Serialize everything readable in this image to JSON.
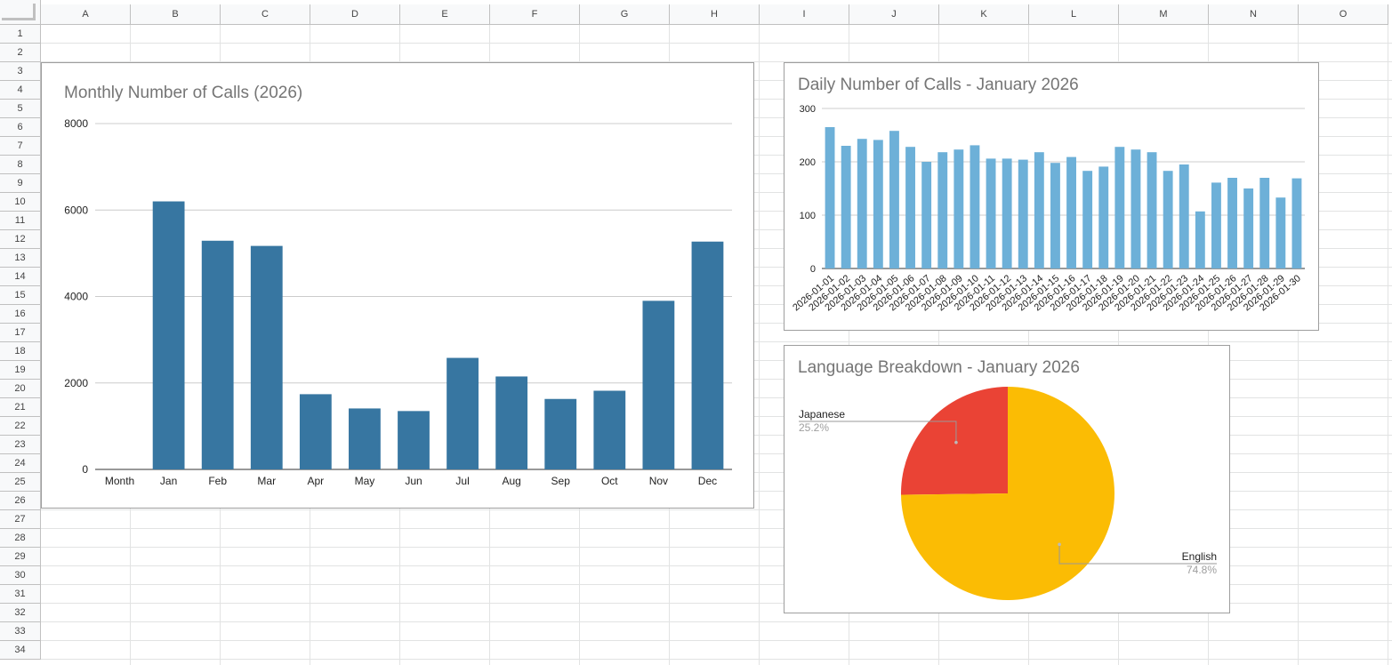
{
  "sheet": {
    "columns": [
      "A",
      "B",
      "C",
      "D",
      "E",
      "F",
      "G",
      "H",
      "I",
      "J",
      "K",
      "L",
      "M",
      "N",
      "O"
    ],
    "rows": [
      "1",
      "2",
      "3",
      "4",
      "5",
      "6",
      "7",
      "8",
      "9",
      "10",
      "11",
      "12",
      "13",
      "14",
      "15",
      "16",
      "17",
      "18",
      "19",
      "20",
      "21",
      "22",
      "23",
      "24",
      "25",
      "26",
      "27",
      "28",
      "29",
      "30",
      "31",
      "32",
      "33",
      "34"
    ]
  },
  "colors": {
    "monthly_bar": "#3776a1",
    "daily_bar": "#6db0d8",
    "english": "#fbbc04",
    "japanese": "#ea4335"
  },
  "chart_data": [
    {
      "type": "bar",
      "title": "Monthly Number of Calls (2026)",
      "categories": [
        "Month",
        "Jan",
        "Feb",
        "Mar",
        "Apr",
        "May",
        "Jun",
        "Jul",
        "Aug",
        "Sep",
        "Oct",
        "Nov",
        "Dec"
      ],
      "values": [
        0,
        6200,
        5290,
        5170,
        1740,
        1410,
        1350,
        2580,
        2150,
        1630,
        1820,
        3900,
        5270
      ],
      "yticks": [
        "0",
        "2000",
        "4000",
        "6000",
        "8000"
      ],
      "ylim": [
        0,
        8000
      ],
      "grid": true
    },
    {
      "type": "bar",
      "title": "Daily Number of Calls - January 2026",
      "categories": [
        "2026-01-01",
        "2026-01-02",
        "2026-01-03",
        "2026-01-04",
        "2026-01-05",
        "2026-01-06",
        "2026-01-07",
        "2026-01-08",
        "2026-01-09",
        "2026-01-10",
        "2026-01-11",
        "2026-01-12",
        "2026-01-13",
        "2026-01-14",
        "2026-01-15",
        "2026-01-16",
        "2026-01-17",
        "2026-01-18",
        "2026-01-19",
        "2026-01-20",
        "2026-01-21",
        "2026-01-22",
        "2026-01-23",
        "2026-01-24",
        "2026-01-25",
        "2026-01-26",
        "2026-01-27",
        "2026-01-28",
        "2026-01-29",
        "2026-01-30"
      ],
      "values": [
        265,
        230,
        243,
        241,
        258,
        228,
        200,
        218,
        223,
        231,
        206,
        206,
        204,
        218,
        198,
        209,
        183,
        191,
        228,
        223,
        218,
        183,
        195,
        107,
        161,
        170,
        150,
        170,
        133,
        169
      ],
      "yticks": [
        "0",
        "100",
        "200",
        "300"
      ],
      "ylim": [
        0,
        300
      ],
      "grid": true
    },
    {
      "type": "pie",
      "title": "Language Breakdown - January 2026",
      "slices": [
        {
          "label": "Japanese",
          "value": 25.2,
          "pct_label": "25.2%"
        },
        {
          "label": "English",
          "value": 74.8,
          "pct_label": "74.8%"
        }
      ]
    }
  ]
}
